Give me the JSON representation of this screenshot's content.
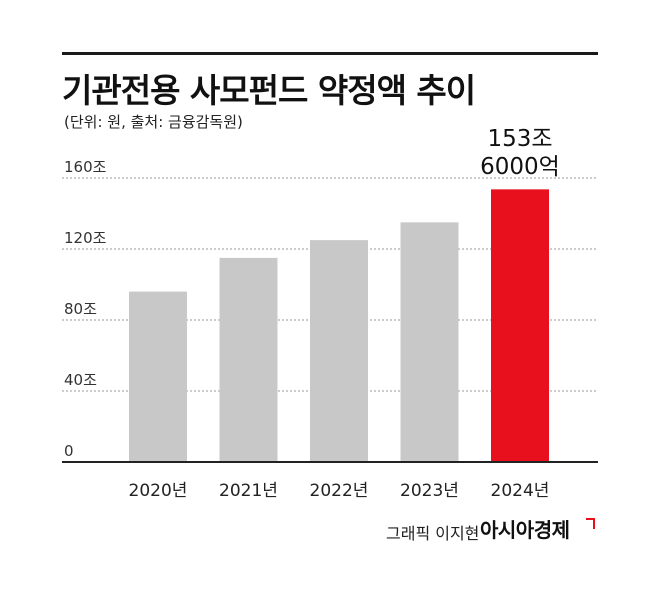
{
  "header": {
    "title": "기관전용 사모펀드 약정액 추이",
    "subtitle": "(단위: 원, 출처: 금융감독원)"
  },
  "chart_data": {
    "type": "bar",
    "categories": [
      "2020년",
      "2021년",
      "2022년",
      "2023년",
      "2024년"
    ],
    "values": [
      96,
      115,
      125,
      135,
      153.6
    ],
    "yticks": [
      {
        "value": 0,
        "label": "0"
      },
      {
        "value": 40,
        "label": "40조"
      },
      {
        "value": 80,
        "label": "80조"
      },
      {
        "value": 120,
        "label": "120조"
      },
      {
        "value": 160,
        "label": "160조"
      }
    ],
    "ylim": [
      0,
      160
    ],
    "grid": true,
    "highlight_index": 4,
    "annotation": {
      "line1": "153조",
      "line2": "6000억"
    },
    "colors": {
      "bar": "#c8c8c8",
      "highlight": "#e8101c",
      "grid": "#9a9a9a",
      "axis": "#222222"
    }
  },
  "footer": {
    "credit": "그래픽 이지현",
    "brand": "아시아경제"
  }
}
